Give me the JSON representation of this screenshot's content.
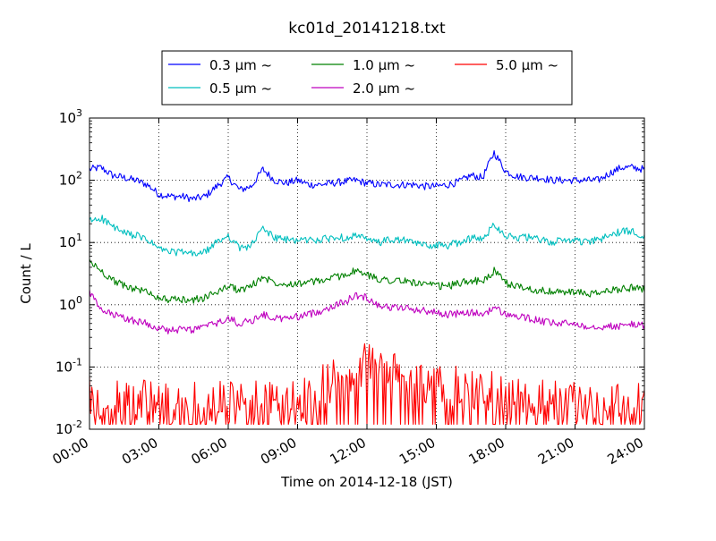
{
  "chart_data": {
    "type": "line",
    "title": "kc01d_20141218.txt",
    "xlabel": "Time on 2014-12-18 (JST)",
    "ylabel": "Count / L",
    "yscale": "log",
    "ylim": [
      0.01,
      1000
    ],
    "xlim": [
      "2014-12-18 00:00",
      "2014-12-19 00:00"
    ],
    "grid": "dotted, major ticks",
    "legend_placement": "top-center, above plot, 3 columns",
    "x_tick_labels": [
      "00:00",
      "03:00",
      "06:00",
      "09:00",
      "12:00",
      "15:00",
      "18:00",
      "21:00",
      "24:00"
    ],
    "y_tick_labels": [
      {
        "base": "10",
        "exp": "-2"
      },
      {
        "base": "10",
        "exp": "-1"
      },
      {
        "base": "10",
        "exp": "0"
      },
      {
        "base": "10",
        "exp": "1"
      },
      {
        "base": "10",
        "exp": "2"
      },
      {
        "base": "10",
        "exp": "3"
      }
    ],
    "x_hours": [
      0,
      0.5,
      1,
      1.5,
      2,
      2.5,
      3,
      3.5,
      4,
      4.5,
      5,
      5.5,
      6,
      6.5,
      7,
      7.5,
      8,
      8.5,
      9,
      9.5,
      10,
      10.5,
      11,
      11.5,
      12,
      12.5,
      13,
      13.5,
      14,
      14.5,
      15,
      15.5,
      16,
      16.5,
      17,
      17.5,
      18,
      18.5,
      19,
      19.5,
      20,
      20.5,
      21,
      21.5,
      22,
      22.5,
      23,
      23.5,
      24
    ],
    "series": [
      {
        "name": "0.3 μm ~",
        "color": "#0000ff",
        "values": [
          150,
          160,
          120,
          110,
          100,
          85,
          60,
          55,
          55,
          50,
          55,
          80,
          110,
          70,
          80,
          150,
          100,
          90,
          100,
          85,
          85,
          90,
          95,
          100,
          90,
          85,
          85,
          85,
          85,
          80,
          80,
          85,
          95,
          120,
          110,
          280,
          140,
          115,
          110,
          110,
          100,
          100,
          100,
          100,
          100,
          130,
          160,
          160,
          150
        ]
      },
      {
        "name": "0.5 μm ~",
        "color": "#00bfbf",
        "values": [
          22,
          25,
          18,
          14,
          13,
          11,
          8,
          7,
          7,
          6.5,
          7,
          10,
          13,
          8,
          9,
          17,
          12,
          11,
          11,
          11,
          11,
          12,
          12,
          13,
          11,
          10,
          11,
          11,
          10,
          9,
          9,
          9,
          10,
          12,
          11,
          20,
          13,
          12,
          12,
          11,
          10,
          11,
          11,
          10,
          11,
          13,
          15,
          15,
          13
        ]
      },
      {
        "name": "1.0 μm ~",
        "color": "#008000",
        "values": [
          5,
          3.5,
          2.5,
          2,
          1.8,
          1.6,
          1.3,
          1.2,
          1.2,
          1.2,
          1.3,
          1.6,
          2,
          1.7,
          2,
          2.8,
          2.3,
          2.2,
          2.2,
          2.3,
          2.4,
          2.7,
          3,
          3.5,
          3,
          2.6,
          2.5,
          2.4,
          2.3,
          2.1,
          2,
          2,
          2.2,
          2.5,
          2.3,
          3.5,
          2.2,
          2,
          1.8,
          1.7,
          1.6,
          1.6,
          1.6,
          1.5,
          1.5,
          1.7,
          1.8,
          1.9,
          1.8
        ]
      },
      {
        "name": "2.0 μm ~",
        "color": "#bf00bf",
        "values": [
          1.6,
          0.8,
          0.7,
          0.6,
          0.55,
          0.5,
          0.42,
          0.38,
          0.4,
          0.4,
          0.45,
          0.5,
          0.6,
          0.5,
          0.55,
          0.7,
          0.6,
          0.6,
          0.65,
          0.7,
          0.8,
          0.95,
          1.1,
          1.4,
          1.3,
          1.0,
          0.9,
          0.9,
          0.85,
          0.8,
          0.75,
          0.7,
          0.72,
          0.75,
          0.7,
          0.9,
          0.7,
          0.65,
          0.6,
          0.55,
          0.5,
          0.5,
          0.5,
          0.45,
          0.45,
          0.45,
          0.45,
          0.5,
          0.45
        ]
      },
      {
        "name": "5.0 μm ~",
        "color": "#ff0000",
        "values": [
          0.04,
          0.03,
          0.025,
          0.03,
          0.025,
          0.03,
          0.025,
          0.025,
          0.025,
          0.03,
          0.025,
          0.025,
          0.03,
          0.025,
          0.025,
          0.03,
          0.025,
          0.025,
          0.03,
          0.03,
          0.05,
          0.06,
          0.07,
          0.09,
          0.12,
          0.09,
          0.08,
          0.07,
          0.06,
          0.06,
          0.05,
          0.05,
          0.05,
          0.045,
          0.04,
          0.04,
          0.035,
          0.035,
          0.03,
          0.03,
          0.03,
          0.03,
          0.03,
          0.03,
          0.025,
          0.025,
          0.025,
          0.03,
          0.03
        ]
      }
    ]
  }
}
